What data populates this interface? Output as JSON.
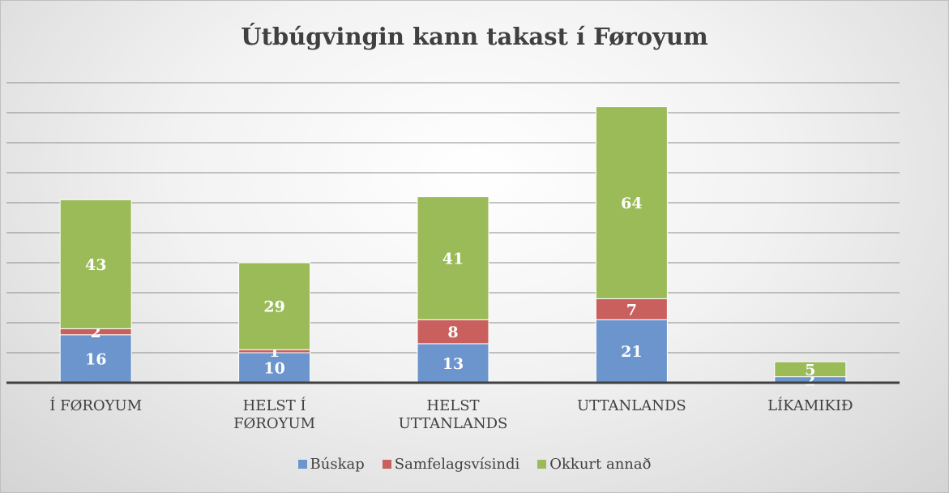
{
  "chart_data": {
    "type": "stacked_bar",
    "title": "Útbúgvingin kann takast í Føroyum",
    "categories": [
      "Í FØROYUM",
      "HELST Í FØROYUM",
      "HELST UTTANLANDS",
      "UTTANLANDS",
      "LÍKAMIKIÐ"
    ],
    "series": [
      {
        "name": "Búskap",
        "color": "#6b95cc",
        "values": [
          16,
          10,
          13,
          21,
          2
        ]
      },
      {
        "name": "Samfelagsvísindi",
        "color": "#c9605e",
        "values": [
          2,
          1,
          8,
          7,
          null
        ]
      },
      {
        "name": "Okkurt annað",
        "color": "#9bbb59",
        "values": [
          43,
          29,
          41,
          64,
          5
        ]
      }
    ],
    "ylim": [
      0,
      100
    ],
    "yticks": [
      0,
      10,
      20,
      30,
      40,
      50,
      60,
      70,
      80,
      90,
      100
    ],
    "grid": true,
    "legend": "bottom"
  }
}
